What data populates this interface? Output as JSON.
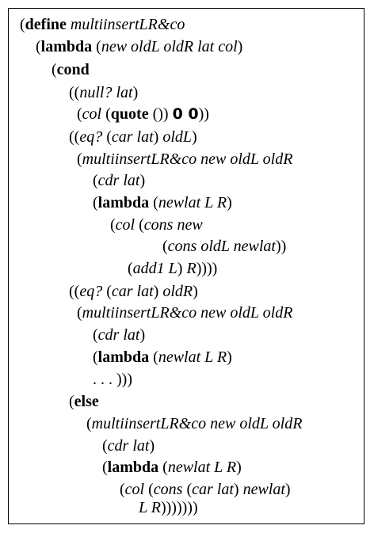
{
  "lines": [
    {
      "tokens": [
        [
          "p",
          "("
        ],
        [
          "kw",
          "define"
        ],
        [
          "p",
          " "
        ],
        [
          "id",
          "multiinsertLR&co"
        ]
      ]
    },
    {
      "tokens": [
        [
          "p",
          "("
        ],
        [
          "kw",
          "lambda"
        ],
        [
          "p",
          " ("
        ],
        [
          "id",
          "new oldL oldR lat col"
        ],
        [
          "p",
          ")"
        ]
      ]
    },
    {
      "tokens": [
        [
          "p",
          "("
        ],
        [
          "kw",
          "cond"
        ]
      ]
    },
    {
      "tokens": [
        [
          "p",
          "(("
        ],
        [
          "id",
          "null? lat"
        ],
        [
          "p",
          ")"
        ]
      ]
    },
    {
      "tokens": [
        [
          "p",
          "("
        ],
        [
          "id",
          "col"
        ],
        [
          "p",
          " ("
        ],
        [
          "kw",
          "quote"
        ],
        [
          "p",
          " ()) "
        ],
        [
          "sym",
          "0 0"
        ],
        [
          "p",
          "))"
        ]
      ]
    },
    {
      "tokens": [
        [
          "p",
          "(("
        ],
        [
          "id",
          "eq?"
        ],
        [
          "p",
          " ("
        ],
        [
          "id",
          "car lat"
        ],
        [
          "p",
          ") "
        ],
        [
          "id",
          "oldL"
        ],
        [
          "p",
          ")"
        ]
      ]
    },
    {
      "tokens": [
        [
          "p",
          "("
        ],
        [
          "id",
          "multiinsertLR&co new oldL oldR"
        ]
      ]
    },
    {
      "tokens": [
        [
          "p",
          "("
        ],
        [
          "id",
          "cdr lat"
        ],
        [
          "p",
          ")"
        ]
      ]
    },
    {
      "tokens": [
        [
          "p",
          "("
        ],
        [
          "kw",
          "lambda"
        ],
        [
          "p",
          " ("
        ],
        [
          "id",
          "newlat L R"
        ],
        [
          "p",
          ")"
        ]
      ]
    },
    {
      "tokens": [
        [
          "p",
          "("
        ],
        [
          "id",
          "col"
        ],
        [
          "p",
          " ("
        ],
        [
          "id",
          "cons new"
        ]
      ]
    },
    {
      "tokens": [
        [
          "p",
          "("
        ],
        [
          "id",
          "cons oldL newlat"
        ],
        [
          "p",
          "))"
        ]
      ]
    },
    {
      "tokens": [
        [
          "p",
          "("
        ],
        [
          "id",
          "add1 L"
        ],
        [
          "p",
          ") "
        ],
        [
          "id",
          "R"
        ],
        [
          "p",
          "))))"
        ]
      ]
    },
    {
      "tokens": [
        [
          "p",
          "(("
        ],
        [
          "id",
          "eq?"
        ],
        [
          "p",
          " ("
        ],
        [
          "id",
          "car lat"
        ],
        [
          "p",
          ") "
        ],
        [
          "id",
          "oldR"
        ],
        [
          "p",
          ")"
        ]
      ]
    },
    {
      "tokens": [
        [
          "p",
          "("
        ],
        [
          "id",
          "multiinsertLR&co new oldL oldR"
        ]
      ]
    },
    {
      "tokens": [
        [
          "p",
          "("
        ],
        [
          "id",
          "cdr lat"
        ],
        [
          "p",
          ")"
        ]
      ]
    },
    {
      "tokens": [
        [
          "p",
          "("
        ],
        [
          "kw",
          "lambda"
        ],
        [
          "p",
          " ("
        ],
        [
          "id",
          "newlat L R"
        ],
        [
          "p",
          ")"
        ]
      ]
    },
    {
      "tokens": [
        [
          "p",
          ". . . )))"
        ]
      ]
    },
    {
      "tokens": [
        [
          "p",
          "("
        ],
        [
          "kw",
          "else"
        ]
      ]
    },
    {
      "tokens": [
        [
          "p",
          "("
        ],
        [
          "id",
          "multiinsertLR&co new oldL oldR"
        ]
      ]
    },
    {
      "tokens": [
        [
          "p",
          "("
        ],
        [
          "id",
          "cdr lat"
        ],
        [
          "p",
          ")"
        ]
      ]
    },
    {
      "tokens": [
        [
          "p",
          "("
        ],
        [
          "kw",
          "lambda"
        ],
        [
          "p",
          " ("
        ],
        [
          "id",
          "newlat L R"
        ],
        [
          "p",
          ")"
        ]
      ]
    },
    {
      "tokens": [
        [
          "p",
          "("
        ],
        [
          "id",
          "col"
        ],
        [
          "p",
          " ("
        ],
        [
          "id",
          "cons"
        ],
        [
          "p",
          " ("
        ],
        [
          "id",
          "car lat"
        ],
        [
          "p",
          ") "
        ],
        [
          "id",
          "newlat"
        ],
        [
          "p",
          ")"
        ]
      ]
    },
    {
      "tokens": [
        [
          "id",
          "L R"
        ],
        [
          "p",
          ")))))))"
        ]
      ]
    }
  ]
}
